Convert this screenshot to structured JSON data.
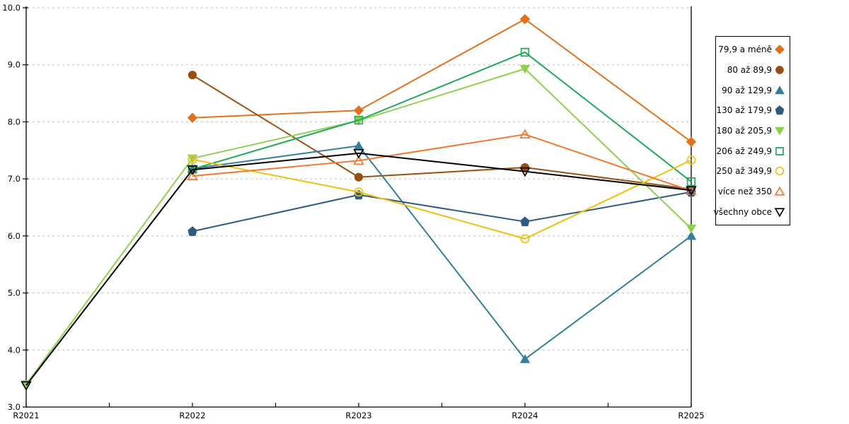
{
  "chart_data": {
    "type": "line",
    "title": "",
    "xlabel": "",
    "ylabel": "",
    "x": [
      "R2021",
      "R2022",
      "R2023",
      "R2024",
      "R2025"
    ],
    "ylim": [
      3.0,
      10.0
    ],
    "y_tick_step": 1.0,
    "y_tick_labels": [
      "3.0",
      "4.0",
      "5.0",
      "6.0",
      "7.0",
      "8.0",
      "9.0",
      "10.0"
    ],
    "grid": "horizontal-dashed",
    "gridline_color": "#bdbdbd",
    "legend_position": "right-outside",
    "series": [
      {
        "name": "79,9 a méně",
        "color": "#e2711d",
        "marker": "diamond",
        "filled": true,
        "values": [
          null,
          8.07,
          8.2,
          9.8,
          7.65
        ]
      },
      {
        "name": "80 až 89,9",
        "color": "#9a4f10",
        "marker": "circle",
        "filled": true,
        "values": [
          null,
          8.82,
          7.03,
          7.2,
          6.82
        ]
      },
      {
        "name": "90 až 129,9",
        "color": "#337f9b",
        "marker": "triangle-up",
        "filled": true,
        "values": [
          null,
          7.18,
          7.58,
          3.84,
          6.0
        ]
      },
      {
        "name": "130 až 179,9",
        "color": "#2e5a84",
        "marker": "pentagon",
        "filled": true,
        "values": [
          null,
          6.08,
          6.72,
          6.25,
          6.77
        ]
      },
      {
        "name": "180 až 205,9",
        "color": "#8fd14f",
        "marker": "triangle-down",
        "filled": true,
        "values": [
          3.4,
          7.36,
          8.02,
          8.93,
          6.13
        ]
      },
      {
        "name": "206 až 249,9",
        "color": "#21a95a",
        "marker": "square",
        "filled": false,
        "values": [
          null,
          7.17,
          8.03,
          9.22,
          6.95
        ]
      },
      {
        "name": "250 až 349,9",
        "color": "#f0c011",
        "marker": "circle",
        "filled": false,
        "values": [
          null,
          7.34,
          6.77,
          5.95,
          7.33
        ]
      },
      {
        "name": "více než 350",
        "color": "#f07830",
        "marker": "triangle-up",
        "filled": false,
        "values": [
          null,
          7.05,
          7.32,
          7.78,
          6.79
        ]
      },
      {
        "name": "všechny obce",
        "color": "#000000",
        "marker": "triangle-down",
        "filled": false,
        "values": [
          3.38,
          7.16,
          7.45,
          7.13,
          6.8
        ]
      }
    ]
  }
}
